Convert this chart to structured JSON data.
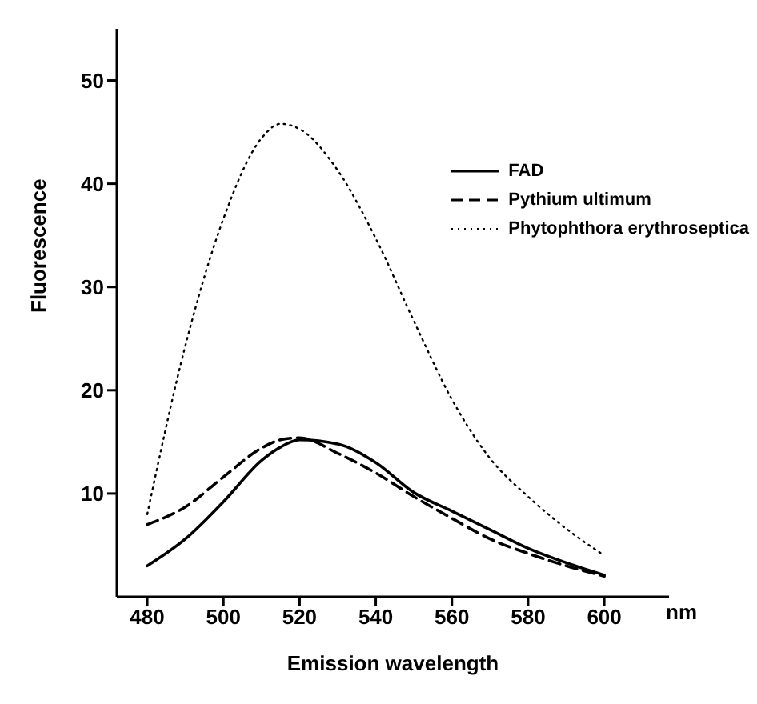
{
  "chart_data": {
    "type": "line",
    "xlabel": "Emission   wavelength",
    "ylabel": "Fluorescence",
    "annotations": [
      "nm"
    ],
    "x": [
      480,
      490,
      500,
      510,
      515,
      520,
      530,
      540,
      550,
      560,
      570,
      580,
      590,
      600
    ],
    "series": [
      {
        "name": "FAD",
        "color": "#000000",
        "line_style": "solid",
        "values": [
          3.0,
          5.6,
          9.2,
          13.2,
          14.5,
          15.2,
          14.8,
          13.0,
          10.1,
          8.3,
          6.5,
          4.7,
          3.3,
          2.1
        ]
      },
      {
        "name": "Pythium ultimum",
        "color": "#000000",
        "line_style": "dashed",
        "values": [
          7.0,
          8.7,
          11.6,
          14.4,
          15.2,
          15.4,
          13.9,
          12.0,
          9.7,
          7.6,
          5.6,
          4.2,
          3.0,
          2.0
        ]
      },
      {
        "name": "Phytophthora erythroseptica",
        "color": "#000000",
        "line_style": "dotted",
        "values": [
          8.0,
          24.3,
          36.6,
          44.4,
          45.8,
          45.3,
          41.3,
          34.7,
          26.7,
          19.1,
          13.4,
          9.7,
          6.6,
          4.0
        ]
      }
    ],
    "xlim": [
      472,
      617
    ],
    "xticks": [
      480,
      500,
      520,
      540,
      560,
      580,
      600
    ],
    "ylim": [
      0,
      55
    ],
    "yticks": [
      10,
      20,
      30,
      40,
      50
    ],
    "grid": false,
    "legend": "top right",
    "marker": "none"
  }
}
